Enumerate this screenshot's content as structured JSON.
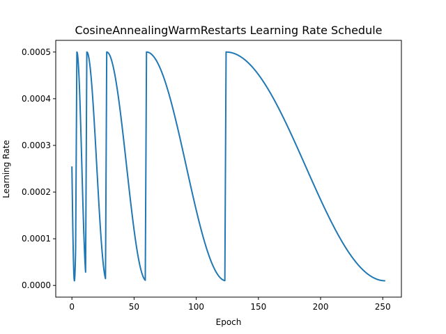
{
  "chart_data": {
    "type": "line",
    "title": "CosineAnnealingWarmRestarts Learning Rate Schedule",
    "xlabel": "Epoch",
    "ylabel": "Learning Rate",
    "xlim": [
      -13,
      265
    ],
    "ylim": [
      -2.5e-05,
      0.000525
    ],
    "x_ticks": [
      {
        "value": 0,
        "label": "0"
      },
      {
        "value": 50,
        "label": "50"
      },
      {
        "value": 100,
        "label": "100"
      },
      {
        "value": 150,
        "label": "150"
      },
      {
        "value": 200,
        "label": "200"
      },
      {
        "value": 250,
        "label": "250"
      }
    ],
    "y_ticks": [
      {
        "value": 0.0,
        "label": "0.0000"
      },
      {
        "value": 0.0001,
        "label": "0.0001"
      },
      {
        "value": 0.0002,
        "label": "0.0002"
      },
      {
        "value": 0.0003,
        "label": "0.0003"
      },
      {
        "value": 0.0004,
        "label": "0.0004"
      },
      {
        "value": 0.0005,
        "label": "0.0005"
      }
    ],
    "grid": false,
    "legend": "none",
    "series": [
      {
        "color": "#1f77b4",
        "schedule": {
          "eta_max": 0.0005,
          "eta_min": 1e-05,
          "cycles": [
            {
              "start": 0,
              "length": 4,
              "initial_fraction": 0.5
            },
            {
              "start": 4,
              "length": 8
            },
            {
              "start": 12,
              "length": 16
            },
            {
              "start": 28,
              "length": 32
            },
            {
              "start": 60,
              "length": 64
            },
            {
              "start": 124,
              "length": 128
            }
          ]
        },
        "points": [
          [
            0,
            0.000255
          ],
          [
            1,
            0.0005
          ],
          [
            2,
            0.000255
          ],
          [
            3,
            8.17e-05
          ],
          [
            4,
            0.0005
          ],
          [
            6,
            0.000418
          ],
          [
            8,
            0.000255
          ],
          [
            10,
            8.18e-05
          ],
          [
            11,
            2.89e-05
          ],
          [
            12,
            0.0005
          ],
          [
            16,
            0.000418
          ],
          [
            20,
            0.000255
          ],
          [
            24,
            8.18e-05
          ],
          [
            27,
            1.47e-05
          ],
          [
            28,
            0.0005
          ],
          [
            36,
            0.000418
          ],
          [
            44,
            0.000255
          ],
          [
            52,
            8.18e-05
          ],
          [
            59,
            1.12e-05
          ],
          [
            60,
            0.0005
          ],
          [
            76,
            0.000418
          ],
          [
            92,
            0.000255
          ],
          [
            108,
            8.18e-05
          ],
          [
            123,
            1.03e-05
          ],
          [
            124,
            0.0005
          ],
          [
            156,
            0.000418
          ],
          [
            188,
            0.000255
          ],
          [
            220,
            8.18e-05
          ],
          [
            252,
            1e-05
          ]
        ]
      }
    ]
  }
}
